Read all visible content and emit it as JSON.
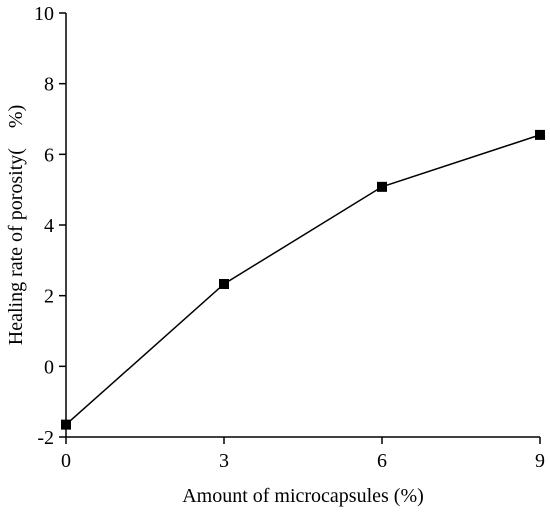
{
  "chart_data": {
    "type": "line",
    "title": "",
    "xlabel": "Amount of microcapsules (%)",
    "ylabel": "Healing rate of porosity(　%)",
    "xlim": [
      0,
      9
    ],
    "ylim": [
      -2,
      10
    ],
    "xticks": [
      0,
      3,
      6,
      9
    ],
    "yticks": [
      -2,
      0,
      2,
      4,
      6,
      8,
      10
    ],
    "xtick_labels": [
      "0",
      "3",
      "6",
      "9"
    ],
    "ytick_labels": [
      "-2",
      "0",
      "2",
      "4",
      "6",
      "8",
      "10"
    ],
    "grid": false,
    "legend": "none",
    "marker": "square",
    "color": "#000000",
    "series": [
      {
        "x": [
          0,
          3,
          6,
          9
        ],
        "y": [
          -1.65,
          2.33,
          5.08,
          6.55
        ]
      }
    ]
  }
}
